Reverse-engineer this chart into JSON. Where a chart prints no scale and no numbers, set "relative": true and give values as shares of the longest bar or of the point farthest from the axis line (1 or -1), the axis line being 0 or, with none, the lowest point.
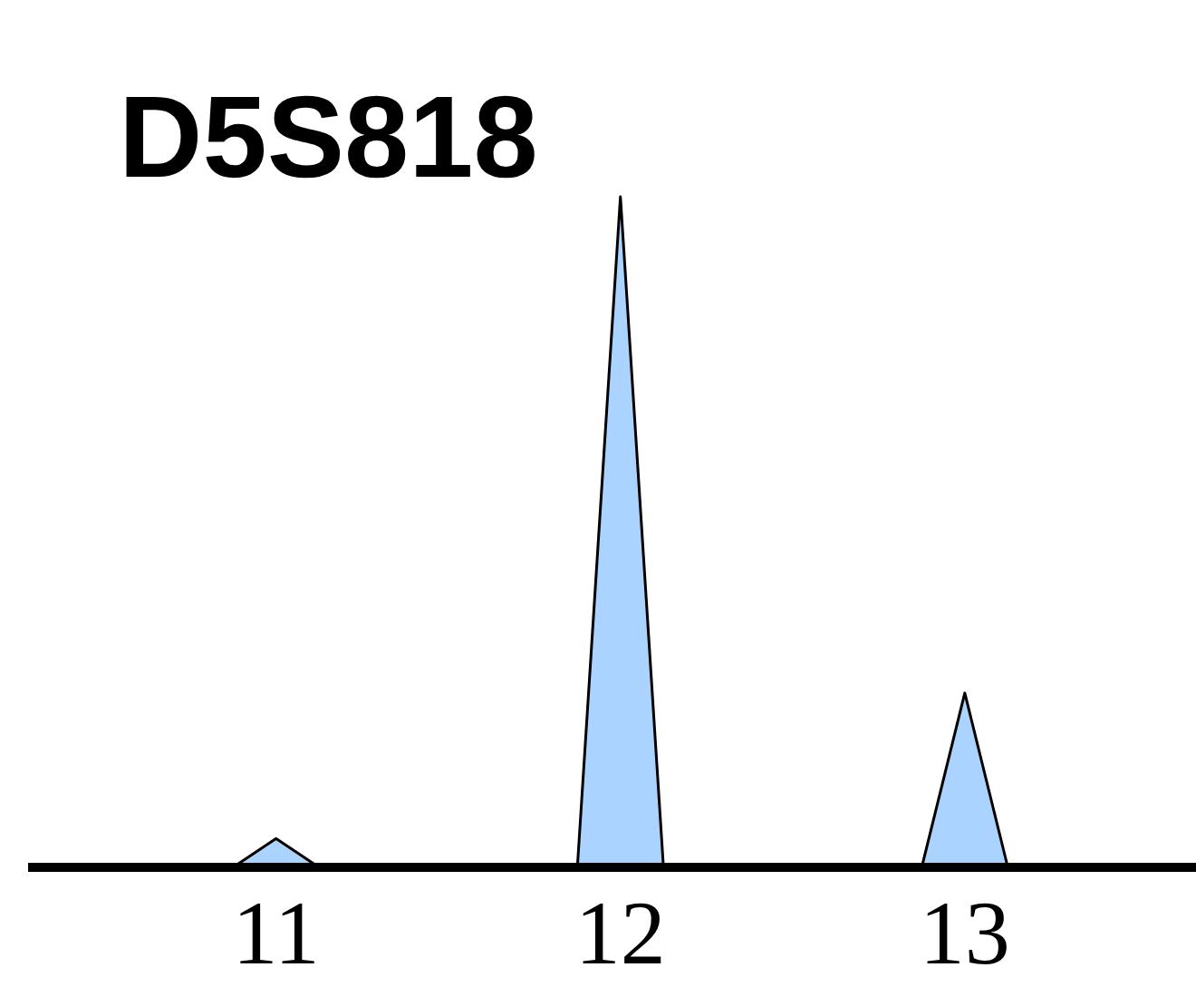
{
  "chart_data": {
    "type": "area",
    "title": "D5S818",
    "relative": true,
    "x": [
      10.875,
      11,
      11.125,
      11.875,
      12,
      12.125,
      12.875,
      13,
      13.125
    ],
    "values": [
      0,
      0.043,
      0,
      0,
      1,
      0,
      0,
      0.26,
      0
    ],
    "color": "#aad4ff",
    "xlim": [
      10.28,
      13.674
    ],
    "xticks": [
      11,
      12,
      13
    ],
    "grid": false
  }
}
